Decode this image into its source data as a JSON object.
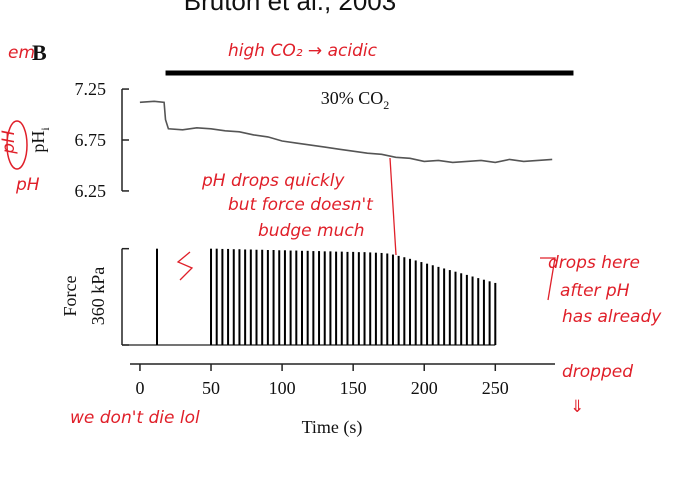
{
  "header": {
    "title": "Bruton et al., 2003",
    "panel_label": "B"
  },
  "chart_data": [
    {
      "type": "line",
      "ylabel": "pH",
      "ylabel_sub": "i",
      "co2_bar": {
        "label": "30% CO",
        "label_sub": "2",
        "start": 18,
        "end": 305
      },
      "x": [
        0,
        10,
        17,
        18,
        20,
        30,
        40,
        50,
        60,
        70,
        80,
        90,
        100,
        110,
        120,
        130,
        140,
        150,
        160,
        170,
        180,
        190,
        200,
        210,
        220,
        230,
        240,
        250,
        260,
        270,
        280,
        290
      ],
      "series": [
        {
          "color": "#555555",
          "values": [
            7.12,
            7.13,
            7.12,
            6.95,
            6.86,
            6.85,
            6.87,
            6.86,
            6.84,
            6.83,
            6.8,
            6.78,
            6.74,
            6.72,
            6.7,
            6.68,
            6.66,
            6.64,
            6.62,
            6.61,
            6.58,
            6.57,
            6.54,
            6.55,
            6.53,
            6.54,
            6.55,
            6.53,
            6.56,
            6.54,
            6.55,
            6.56
          ]
        }
      ],
      "xlim": [
        -7,
        292
      ],
      "ylim": [
        6.22,
        7.28
      ],
      "yticks": [
        7.25,
        6.75,
        6.25
      ]
    },
    {
      "type": "bar",
      "ylabel": "Force",
      "xlabel": "Time (s)",
      "scale_bar": {
        "value": 360,
        "label": "360 kPa"
      },
      "x": [
        12,
        50,
        54,
        58,
        62,
        66,
        70,
        74,
        78,
        82,
        86,
        90,
        94,
        98,
        102,
        106,
        110,
        114,
        118,
        122,
        126,
        130,
        134,
        138,
        142,
        146,
        150,
        154,
        158,
        162,
        166,
        170,
        174,
        178,
        182,
        186,
        190,
        194,
        198,
        202,
        206,
        210,
        214,
        218,
        222,
        226,
        230,
        234,
        238,
        242,
        246,
        250
      ],
      "values": [
        360,
        360,
        360,
        359,
        359,
        358,
        358,
        357,
        357,
        356,
        356,
        355,
        355,
        354,
        354,
        353,
        353,
        352,
        352,
        351,
        351,
        350,
        350,
        349,
        349,
        348,
        348,
        347,
        347,
        346,
        345,
        344,
        342,
        338,
        333,
        328,
        322,
        316,
        310,
        304,
        298,
        292,
        286,
        280,
        274,
        268,
        262,
        256,
        250,
        244,
        238,
        232
      ],
      "color": "#000000",
      "xlim": [
        -7,
        292
      ],
      "ylim": [
        0,
        370
      ],
      "xticks": [
        0,
        50,
        100,
        150,
        200,
        250
      ]
    }
  ],
  "notes": [
    "high CO₂ → acidic",
    "pH drops quickly",
    "but force doesn't",
    "budge much",
    "drops here",
    "after pH",
    "has already",
    "dropped",
    "⇓",
    "we don't die lol",
    "pH",
    "pH",
    "em"
  ]
}
